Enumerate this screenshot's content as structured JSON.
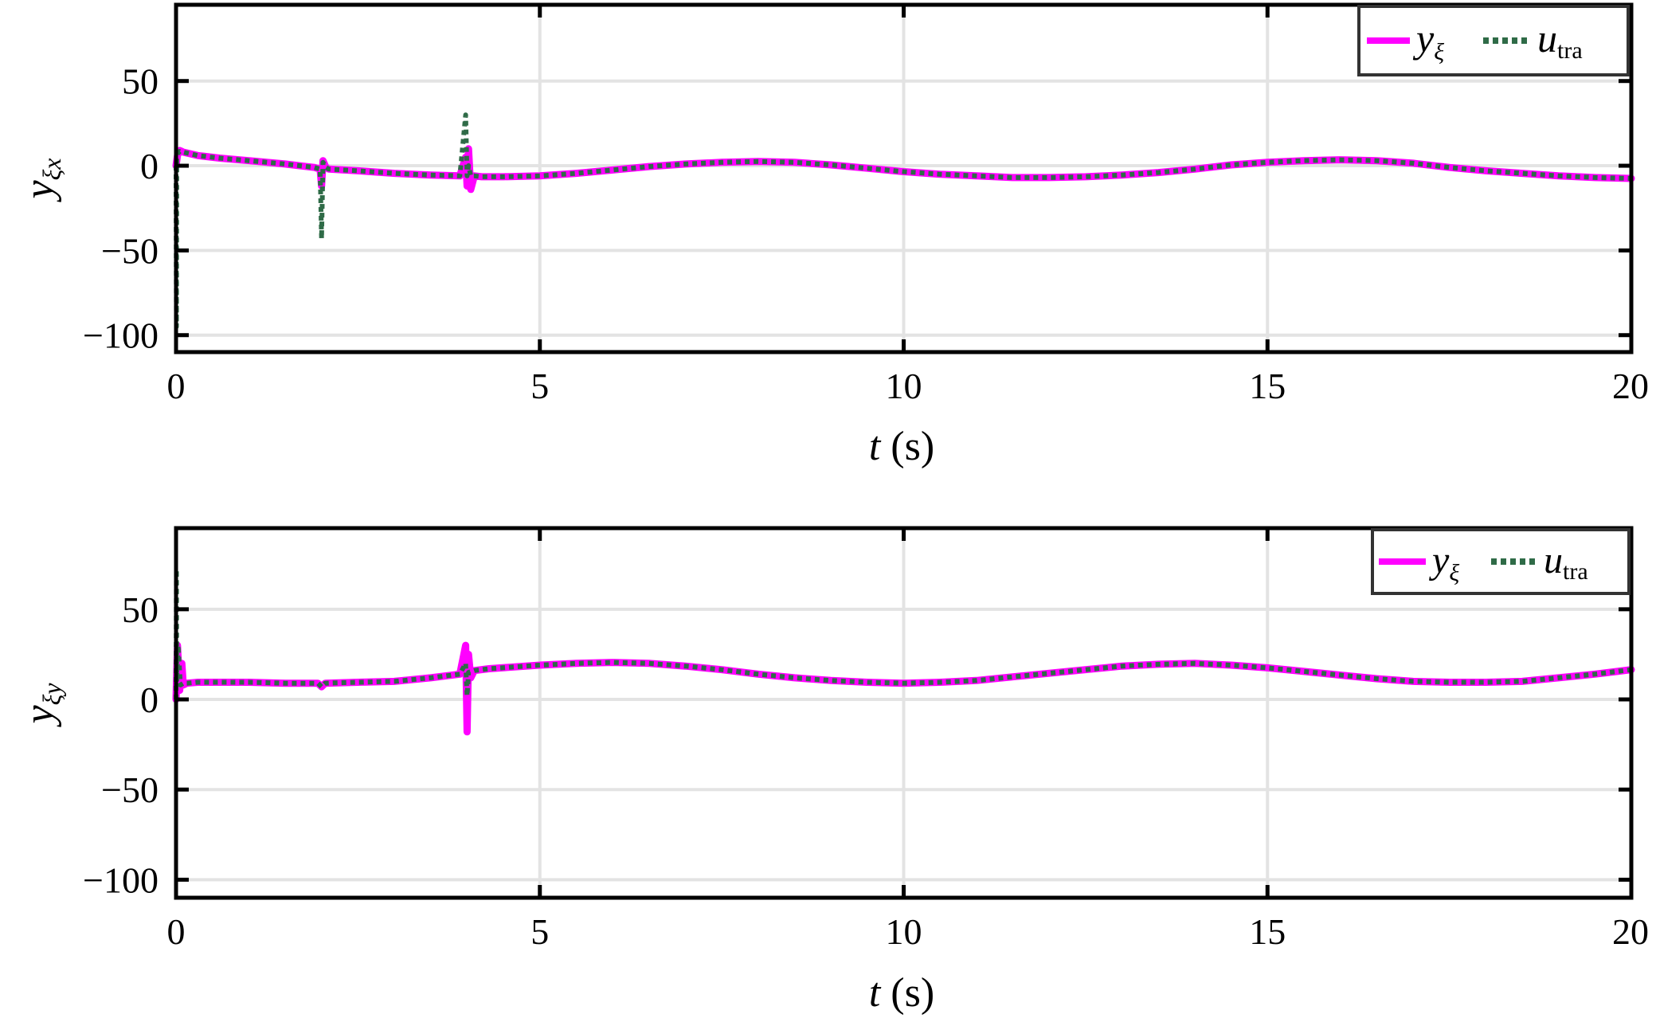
{
  "chart_data": [
    {
      "type": "line",
      "ylabel": "y",
      "ylabel_sub": "ξx",
      "xlabel_var": "t",
      "xlabel_unit": " (s)",
      "xlim": [
        0,
        20
      ],
      "ylim": [
        -110,
        95
      ],
      "xticks": [
        0,
        5,
        10,
        15,
        20
      ],
      "yticks": [
        -100,
        -50,
        0,
        50
      ],
      "ytick_labels": [
        "−100",
        "−50",
        "0",
        "50"
      ],
      "grid": true,
      "legend_position": "top-right",
      "series": [
        {
          "name": "y",
          "name_sub": "ξ",
          "color": "#ff00ff",
          "style": "solid",
          "x": [
            0.0,
            0.02,
            0.05,
            0.08,
            0.1,
            0.3,
            0.6,
            1.0,
            1.5,
            1.9,
            1.98,
            2.0,
            2.02,
            2.06,
            2.1,
            2.5,
            3.0,
            3.5,
            3.9,
            3.98,
            4.0,
            4.02,
            4.05,
            4.1,
            4.2,
            4.5,
            5.0,
            5.5,
            6.0,
            6.5,
            7.0,
            7.5,
            8.0,
            8.5,
            9.0,
            9.5,
            10.0,
            10.5,
            11.0,
            11.5,
            12.0,
            12.5,
            13.0,
            13.5,
            14.0,
            14.5,
            15.0,
            15.5,
            16.0,
            16.5,
            17.0,
            17.5,
            18.0,
            18.5,
            19.0,
            19.5,
            20.0
          ],
          "y": [
            0,
            6,
            9,
            8.5,
            8,
            6,
            4.5,
            3,
            1,
            -1,
            -2,
            -12,
            3,
            -1,
            -2,
            -3,
            -4.5,
            -5.5,
            -6,
            5,
            -12,
            10,
            -14,
            -6,
            -6.5,
            -6.5,
            -6,
            -4.5,
            -2.5,
            -0.5,
            1,
            2,
            2.5,
            2,
            0.5,
            -1.5,
            -3.5,
            -5,
            -6,
            -7,
            -7,
            -6.5,
            -5.5,
            -4,
            -2,
            0.5,
            2,
            3,
            3.5,
            3,
            1.5,
            -1,
            -3,
            -4.5,
            -6,
            -7,
            -7.5
          ]
        },
        {
          "name": "u",
          "name_sub": "tra",
          "color": "#2f6b47",
          "style": "dotted",
          "x": [
            0.0,
            0.005,
            0.01,
            0.02,
            0.05,
            0.1,
            0.3,
            0.6,
            1.0,
            1.5,
            1.9,
            1.98,
            2.0,
            2.02,
            2.06,
            2.1,
            2.5,
            3.0,
            3.5,
            3.9,
            3.98,
            4.0,
            4.02,
            4.05,
            4.1,
            4.2,
            4.5,
            5.0,
            5.5,
            6.0,
            6.5,
            7.0,
            7.5,
            8.0,
            8.5,
            9.0,
            9.5,
            10.0,
            10.5,
            11.0,
            11.5,
            12.0,
            12.5,
            13.0,
            13.5,
            14.0,
            14.5,
            15.0,
            15.5,
            16.0,
            16.5,
            17.0,
            17.5,
            18.0,
            18.5,
            19.0,
            19.5,
            20.0
          ],
          "y": [
            0,
            -95,
            5,
            7,
            8.5,
            8,
            6,
            4.5,
            3,
            1,
            -1,
            -2,
            -43,
            2,
            -1,
            -2,
            -3,
            -4.5,
            -5.5,
            -6,
            30,
            -6,
            0,
            -6,
            -6,
            -6.5,
            -6.5,
            -6,
            -4.5,
            -2.5,
            -0.5,
            1,
            2,
            2.5,
            2,
            0.5,
            -1.5,
            -3.5,
            -5,
            -6,
            -7,
            -7,
            -6.5,
            -5.5,
            -4,
            -2,
            0.5,
            2,
            3,
            3.5,
            3,
            1.5,
            -1,
            -3,
            -4.5,
            -6,
            -7,
            -7.5
          ]
        }
      ]
    },
    {
      "type": "line",
      "ylabel": "y",
      "ylabel_sub": "ξy",
      "xlabel_var": "t",
      "xlabel_unit": " (s)",
      "xlim": [
        0,
        20
      ],
      "ylim": [
        -110,
        95
      ],
      "xticks": [
        0,
        5,
        10,
        15,
        20
      ],
      "yticks": [
        -100,
        -50,
        0,
        50
      ],
      "ytick_labels": [
        "−100",
        "−50",
        "0",
        "50"
      ],
      "grid": true,
      "legend_position": "top-right",
      "series": [
        {
          "name": "y",
          "name_sub": "ξ",
          "color": "#ff00ff",
          "style": "solid",
          "x": [
            0.0,
            0.02,
            0.05,
            0.08,
            0.1,
            0.15,
            0.3,
            0.6,
            1.0,
            1.5,
            1.95,
            2.0,
            2.05,
            2.5,
            3.0,
            3.5,
            3.9,
            3.98,
            4.0,
            4.02,
            4.05,
            4.1,
            4.3,
            5.0,
            5.5,
            6.0,
            6.5,
            7.0,
            7.5,
            8.0,
            8.5,
            9.0,
            9.5,
            10.0,
            10.5,
            11.0,
            11.5,
            12.0,
            12.5,
            13.0,
            13.5,
            14.0,
            14.5,
            15.0,
            15.5,
            16.0,
            16.5,
            17.0,
            17.5,
            18.0,
            18.5,
            19.0,
            19.5,
            20.0
          ],
          "y": [
            0,
            30,
            5,
            20,
            8,
            9,
            9.5,
            9.5,
            9.5,
            9,
            9,
            7,
            9,
            9.5,
            10,
            12,
            14,
            30,
            -18,
            25,
            12,
            16,
            17,
            19,
            20,
            20.5,
            20,
            18.5,
            16.5,
            14,
            12,
            10.5,
            9.5,
            9,
            9.5,
            10.5,
            12.5,
            14.5,
            16.5,
            18.5,
            19.5,
            20,
            19,
            17.5,
            15.5,
            13.5,
            11.5,
            10,
            9.5,
            9.5,
            10,
            12,
            14,
            16.5
          ]
        },
        {
          "name": "u",
          "name_sub": "tra",
          "color": "#2f6b47",
          "style": "dotted",
          "x": [
            0.0,
            0.005,
            0.01,
            0.03,
            0.06,
            0.1,
            0.15,
            0.3,
            0.6,
            1.0,
            1.5,
            1.95,
            2.0,
            2.05,
            2.5,
            3.0,
            3.5,
            3.9,
            3.98,
            4.0,
            4.02,
            4.1,
            4.3,
            5.0,
            5.5,
            6.0,
            6.5,
            7.0,
            7.5,
            8.0,
            8.5,
            9.0,
            9.5,
            10.0,
            10.5,
            11.0,
            11.5,
            12.0,
            12.5,
            13.0,
            13.5,
            14.0,
            14.5,
            15.0,
            15.5,
            16.0,
            16.5,
            17.0,
            17.5,
            18.0,
            18.5,
            19.0,
            19.5,
            20.0
          ],
          "y": [
            0,
            72,
            10,
            30,
            8,
            9,
            9,
            9.5,
            9.5,
            9.5,
            9,
            9,
            7,
            9,
            9.5,
            10,
            12,
            14,
            20,
            2,
            15,
            16,
            17,
            19,
            20,
            20.5,
            20,
            18.5,
            16.5,
            14,
            12,
            10.5,
            9.5,
            9,
            9.5,
            10.5,
            12.5,
            14.5,
            16.5,
            18.5,
            19.5,
            20,
            19,
            17.5,
            15.5,
            13.5,
            11.5,
            10,
            9.5,
            9.5,
            10,
            12,
            14,
            16.5
          ]
        }
      ]
    }
  ]
}
